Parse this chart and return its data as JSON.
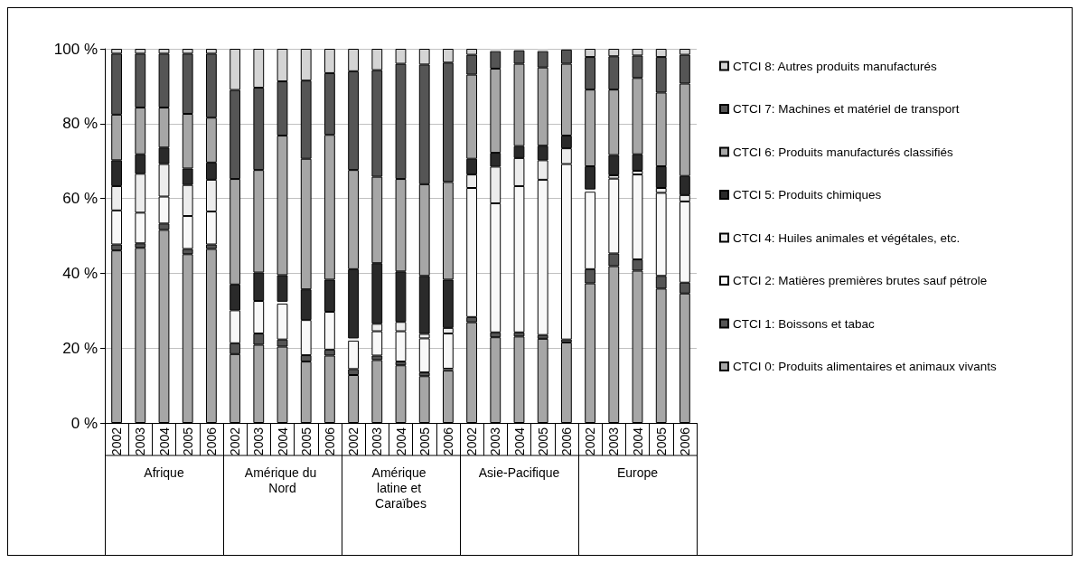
{
  "chart_data": {
    "type": "bar",
    "stacked": true,
    "categories": [
      "2002",
      "2003",
      "2004",
      "2005",
      "2006",
      "2002",
      "2003",
      "2004",
      "2005",
      "2006",
      "2002",
      "2003",
      "2004",
      "2005",
      "2006",
      "2002",
      "2003",
      "2004",
      "2005",
      "2006",
      "2002",
      "2003",
      "2004",
      "2005",
      "2006"
    ],
    "annotations": [
      "Afrique",
      "Amérique du Nord",
      "Amérique latine et Caraïbes",
      "Asie-Pacifique",
      "Europe"
    ],
    "ylim": [
      0,
      100
    ],
    "yticks": [
      {
        "value": 0,
        "label": "0 %"
      },
      {
        "value": 20,
        "label": "20 %"
      },
      {
        "value": 40,
        "label": "40 %"
      },
      {
        "value": 60,
        "label": "60 %"
      },
      {
        "value": 80,
        "label": "80 %"
      },
      {
        "value": 100,
        "label": "100 %"
      }
    ],
    "grid": "y",
    "legend": "right",
    "series": [
      {
        "name": "CTCI 0: Produits alimentaires et animaux vivants",
        "color": "#a6a6a6",
        "values": [
          46.1,
          46.8,
          51.6,
          45.1,
          46.5,
          18.4,
          20.9,
          20.4,
          16.4,
          18.0,
          12.8,
          16.8,
          15.4,
          12.5,
          14.0,
          26.9,
          22.9,
          23.1,
          22.5,
          21.5,
          37.3,
          41.9,
          40.7,
          35.9,
          34.6
        ]
      },
      {
        "name": "CTCI 1: Boissons et tabac",
        "color": "#555555",
        "values": [
          1.6,
          1.2,
          1.7,
          1.4,
          1.2,
          2.9,
          3.0,
          1.9,
          1.7,
          1.6,
          1.6,
          1.2,
          1.0,
          1.0,
          0.5,
          1.4,
          1.3,
          1.1,
          1.0,
          0.8,
          3.8,
          3.4,
          3.0,
          3.4,
          2.9
        ]
      },
      {
        "name": "CTCI 2: Matières premières brutes sauf pétrole",
        "color": "#f8f8f8",
        "values": [
          9.1,
          8.2,
          7.2,
          8.8,
          8.8,
          8.8,
          8.7,
          9.6,
          9.4,
          10.1,
          7.6,
          6.5,
          8.1,
          9.1,
          9.4,
          34.5,
          34.5,
          39.1,
          41.5,
          46.9,
          20.7,
          20.0,
          22.7,
          22.2,
          21.7
        ]
      },
      {
        "name": "CTCI 4: Huiles animales et végétales, etc.",
        "color": "#ececec",
        "values": [
          6.5,
          10.4,
          8.7,
          8.3,
          8.5,
          0,
          0,
          0.5,
          0,
          0,
          0.6,
          2.0,
          2.5,
          1.2,
          1.5,
          3.6,
          9.8,
          7.5,
          5.2,
          4.2,
          0.6,
          0.9,
          1.0,
          1.3,
          1.7
        ]
      },
      {
        "name": "CTCI 5: Produits chimiques",
        "color": "#2a2a2a",
        "values": [
          6.9,
          5.2,
          4.4,
          4.4,
          4.6,
          6.9,
          7.6,
          7.1,
          8.2,
          8.6,
          18.5,
          16.2,
          13.5,
          15.5,
          12.9,
          4.2,
          3.7,
          3.2,
          3.9,
          3.4,
          6.2,
          5.4,
          4.4,
          5.8,
          5.1
        ]
      },
      {
        "name": "CTCI 6: Produits manufacturés classifiés",
        "color": "#a6a6a6",
        "values": [
          12.2,
          12.5,
          10.7,
          14.6,
          12.0,
          28.2,
          27.4,
          37.3,
          34.9,
          38.7,
          26.5,
          23.1,
          24.7,
          24.5,
          26.1,
          22.5,
          22.5,
          22.0,
          20.9,
          19.2,
          20.5,
          17.5,
          20.4,
          19.7,
          24.7
        ]
      },
      {
        "name": "CTCI 7: Machines et matériel de transport",
        "color": "#555555",
        "values": [
          16.3,
          14.4,
          14.4,
          16.1,
          17.1,
          23.8,
          22.0,
          14.5,
          20.9,
          16.5,
          26.4,
          28.5,
          30.8,
          32.0,
          31.9,
          5.3,
          4.7,
          3.6,
          4.4,
          3.8,
          8.7,
          8.9,
          6.0,
          9.5,
          7.7
        ]
      },
      {
        "name": "CTCI 8: Autres produits manufacturés",
        "color": "#d4d4d4",
        "values": [
          1.3,
          1.3,
          1.3,
          1.3,
          1.3,
          11.0,
          10.4,
          8.7,
          8.5,
          6.5,
          6.0,
          5.7,
          4.0,
          4.2,
          3.7,
          1.6,
          0.6,
          null,
          0.6,
          null,
          2.2,
          2.0,
          1.8,
          2.2,
          1.6
        ]
      }
    ]
  }
}
